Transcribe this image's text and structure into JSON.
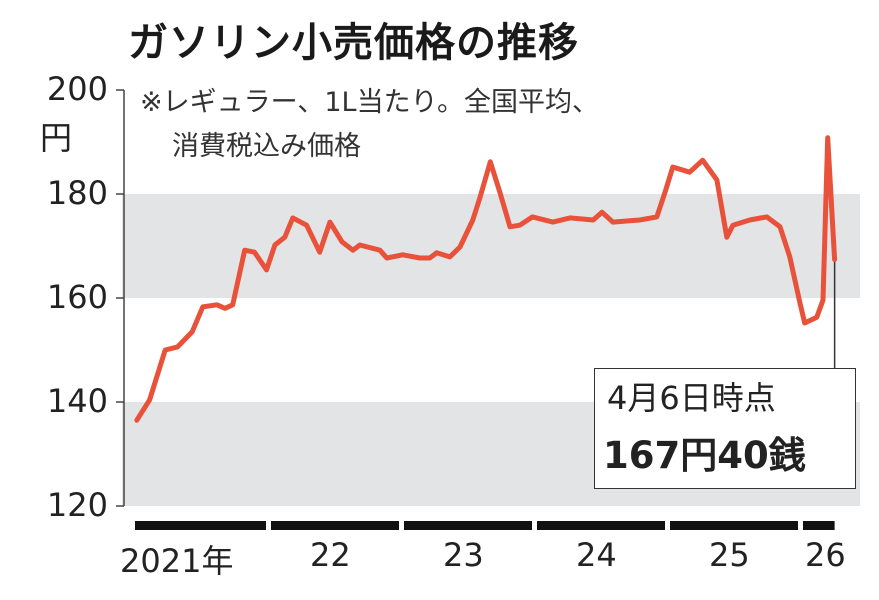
{
  "chart_data": {
    "type": "line",
    "title": "ガソリン小売価格の推移",
    "notes": [
      "※レギュラー、1L当たり。全国平均、",
      "消費税込み価格"
    ],
    "yunit": "円",
    "ylim": [
      120,
      200
    ],
    "yticks": [
      "200",
      "180",
      "160",
      "140",
      "120"
    ],
    "ytick_values": [
      200,
      180,
      160,
      140,
      120
    ],
    "xlim": [
      "2021-01-01",
      "2026-04-06"
    ],
    "xticks": [
      "2021年",
      "22",
      "23",
      "24",
      "25",
      "26"
    ],
    "bands": [
      [
        160,
        180
      ],
      [
        120,
        140
      ]
    ],
    "colors": {
      "line": "#e8513a",
      "band": "#e3e4e6",
      "axis": "#111111"
    },
    "series": [
      {
        "points": [
          [
            "2021-01-06",
            136.5
          ],
          [
            "2021-02-10",
            140.4
          ],
          [
            "2021-03-25",
            150.0
          ],
          [
            "2021-04-28",
            150.6
          ],
          [
            "2021-06-07",
            153.5
          ],
          [
            "2021-07-06",
            158.3
          ],
          [
            "2021-08-14",
            158.7
          ],
          [
            "2021-09-05",
            158.0
          ],
          [
            "2021-09-26",
            158.7
          ],
          [
            "2021-10-29",
            169.2
          ],
          [
            "2021-11-25",
            168.8
          ],
          [
            "2021-12-28",
            165.4
          ],
          [
            "2022-01-20",
            170.2
          ],
          [
            "2022-02-16",
            171.7
          ],
          [
            "2022-03-10",
            175.4
          ],
          [
            "2022-04-17",
            174.0
          ],
          [
            "2022-05-23",
            168.8
          ],
          [
            "2022-06-20",
            174.6
          ],
          [
            "2022-07-23",
            170.8
          ],
          [
            "2022-08-22",
            169.2
          ],
          [
            "2022-09-10",
            170.2
          ],
          [
            "2022-11-04",
            169.2
          ],
          [
            "2022-11-23",
            167.7
          ],
          [
            "2023-01-06",
            168.3
          ],
          [
            "2023-02-22",
            167.7
          ],
          [
            "2023-03-21",
            167.7
          ],
          [
            "2023-04-09",
            168.7
          ],
          [
            "2023-05-15",
            167.9
          ],
          [
            "2023-06-12",
            169.8
          ],
          [
            "2023-07-17",
            175.0
          ],
          [
            "2023-08-06",
            179.4
          ],
          [
            "2023-09-03",
            186.2
          ],
          [
            "2023-09-30",
            180.2
          ],
          [
            "2023-10-27",
            173.7
          ],
          [
            "2023-11-23",
            174.0
          ],
          [
            "2023-12-28",
            175.6
          ],
          [
            "2024-02-22",
            174.6
          ],
          [
            "2024-04-09",
            175.4
          ],
          [
            "2024-06-12",
            175.0
          ],
          [
            "2024-07-06",
            176.5
          ],
          [
            "2024-08-05",
            174.6
          ],
          [
            "2024-10-18",
            175.0
          ],
          [
            "2024-12-04",
            175.6
          ],
          [
            "2024-12-26",
            180.2
          ],
          [
            "2025-01-17",
            185.2
          ],
          [
            "2025-03-04",
            184.2
          ],
          [
            "2025-04-09",
            186.5
          ],
          [
            "2025-05-18",
            182.7
          ],
          [
            "2025-06-14",
            171.7
          ],
          [
            "2025-07-01",
            174.0
          ],
          [
            "2025-08-16",
            175.0
          ],
          [
            "2025-10-02",
            175.6
          ],
          [
            "2025-11-07",
            173.7
          ],
          [
            "2025-12-04",
            167.9
          ],
          [
            "2026-01-01",
            159.0
          ],
          [
            "2026-01-14",
            155.2
          ],
          [
            "2026-02-16",
            156.3
          ],
          [
            "2026-03-05",
            159.6
          ],
          [
            "2026-03-18",
            190.8
          ],
          [
            "2026-04-06",
            167.4
          ]
        ]
      }
    ],
    "annotation": {
      "date": "4月6日時点",
      "value": "167円40銭",
      "point": [
        "2026-04-06",
        167.4
      ]
    }
  }
}
